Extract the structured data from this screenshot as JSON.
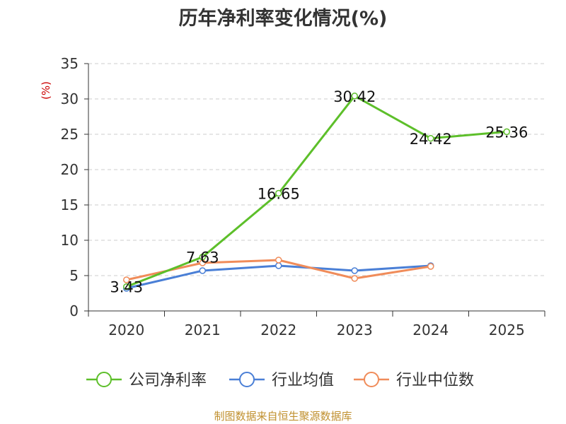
{
  "title": "历年净利率变化情况(%)",
  "source": "制图数据来自恒生聚源数据库",
  "chart_data": {
    "type": "line",
    "title": "历年净利率变化情况(%)",
    "ylabel": "(%)",
    "xlabel": "",
    "categories": [
      "2020",
      "2021",
      "2022",
      "2023",
      "2024",
      "2025"
    ],
    "ylim": [
      0,
      35
    ],
    "yticks": [
      "0",
      "5",
      "10",
      "15",
      "20",
      "25",
      "30",
      "35"
    ],
    "grid": true,
    "legend_position": "bottom",
    "series": [
      {
        "name": "公司净利率",
        "color": "#5dbf2a",
        "values": [
          3.43,
          7.63,
          16.65,
          30.42,
          24.42,
          25.36
        ],
        "labels": [
          "3.43",
          "7.63",
          "16.65",
          "30.42",
          "24.42",
          "25.36"
        ]
      },
      {
        "name": "行业均值",
        "color": "#4a7fd6",
        "values": [
          3.2,
          5.7,
          6.4,
          5.7,
          6.4,
          null
        ]
      },
      {
        "name": "行业中位数",
        "color": "#f08c5a",
        "values": [
          4.4,
          6.8,
          7.2,
          4.6,
          6.3,
          null
        ]
      }
    ]
  }
}
